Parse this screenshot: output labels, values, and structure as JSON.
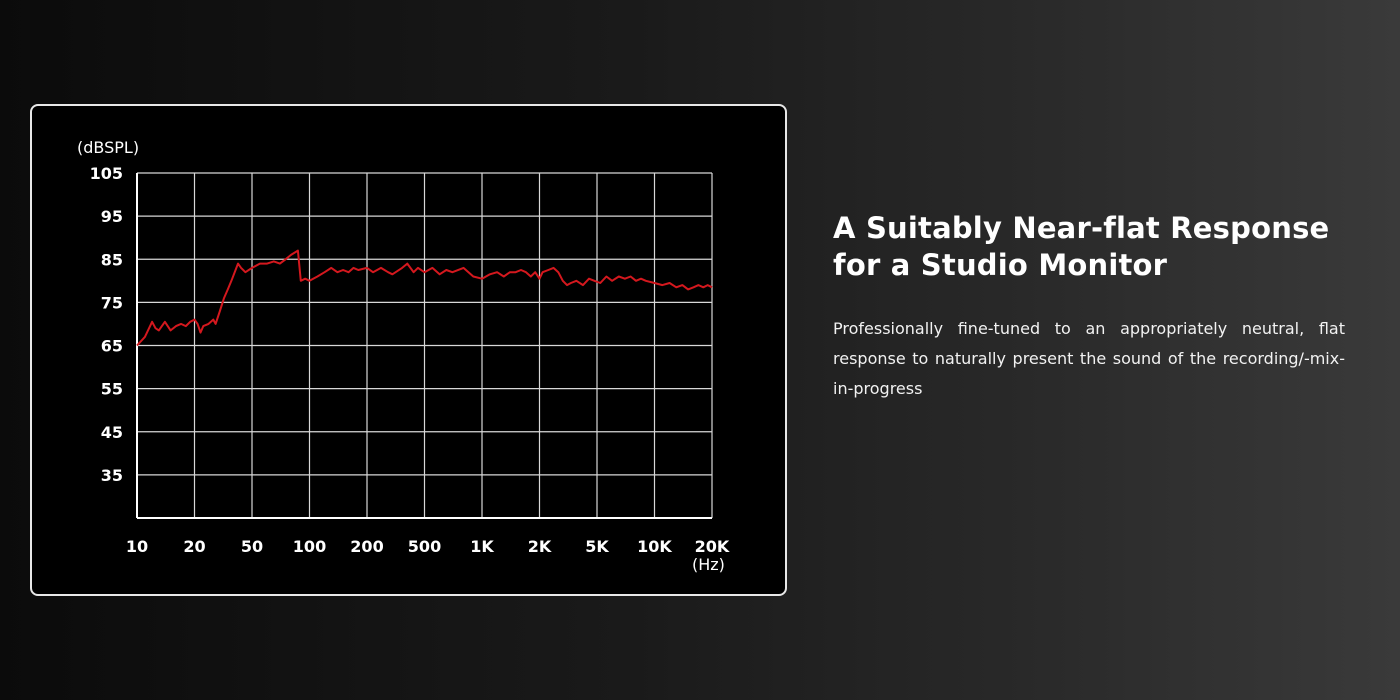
{
  "chart_data": {
    "type": "line",
    "y_unit": "(dBSPL)",
    "x_unit": "(Hz)",
    "x_scale": "log",
    "y_ticks": [
      105,
      95,
      85,
      75,
      65,
      55,
      45,
      35
    ],
    "ylim": [
      25,
      105
    ],
    "x_tick_labels": [
      "10",
      "20",
      "50",
      "100",
      "200",
      "500",
      "1K",
      "2K",
      "5K",
      "10K",
      "20K"
    ],
    "xlim": [
      10,
      20000
    ],
    "grid": true,
    "series": [
      {
        "color": "#d4181e",
        "points": [
          [
            10,
            65
          ],
          [
            11,
            67
          ],
          [
            12,
            70.5
          ],
          [
            12.5,
            69
          ],
          [
            13,
            68.5
          ],
          [
            14,
            70.5
          ],
          [
            15,
            68.5
          ],
          [
            16,
            69.5
          ],
          [
            17,
            70
          ],
          [
            18,
            69.5
          ],
          [
            19,
            70.5
          ],
          [
            20,
            71
          ],
          [
            21,
            70
          ],
          [
            22,
            68
          ],
          [
            23,
            69.5
          ],
          [
            25,
            70
          ],
          [
            27,
            71
          ],
          [
            28,
            70
          ],
          [
            30,
            73
          ],
          [
            32,
            76
          ],
          [
            34,
            78
          ],
          [
            36,
            80
          ],
          [
            40,
            84
          ],
          [
            42,
            83
          ],
          [
            45,
            82
          ],
          [
            50,
            83
          ],
          [
            55,
            84
          ],
          [
            60,
            84
          ],
          [
            65,
            84.5
          ],
          [
            70,
            84
          ],
          [
            75,
            85
          ],
          [
            80,
            86
          ],
          [
            87,
            87
          ],
          [
            90,
            80
          ],
          [
            95,
            80.5
          ],
          [
            100,
            80
          ],
          [
            110,
            81
          ],
          [
            120,
            82
          ],
          [
            130,
            83
          ],
          [
            140,
            82
          ],
          [
            150,
            82.5
          ],
          [
            160,
            82
          ],
          [
            170,
            83
          ],
          [
            180,
            82.5
          ],
          [
            200,
            83
          ],
          [
            220,
            82
          ],
          [
            250,
            83
          ],
          [
            280,
            82
          ],
          [
            300,
            81.5
          ],
          [
            350,
            83
          ],
          [
            380,
            84
          ],
          [
            420,
            82
          ],
          [
            450,
            83
          ],
          [
            500,
            82
          ],
          [
            550,
            83
          ],
          [
            600,
            81.5
          ],
          [
            650,
            82.5
          ],
          [
            700,
            82
          ],
          [
            800,
            83
          ],
          [
            900,
            81
          ],
          [
            1000,
            80.5
          ],
          [
            1100,
            81.5
          ],
          [
            1200,
            82
          ],
          [
            1300,
            81
          ],
          [
            1400,
            82
          ],
          [
            1500,
            82
          ],
          [
            1600,
            82.5
          ],
          [
            1700,
            82
          ],
          [
            1800,
            81
          ],
          [
            1900,
            82
          ],
          [
            2000,
            80.5
          ],
          [
            2100,
            82
          ],
          [
            2300,
            82.5
          ],
          [
            2500,
            83
          ],
          [
            2700,
            82
          ],
          [
            2900,
            80
          ],
          [
            3100,
            79
          ],
          [
            3300,
            79.5
          ],
          [
            3600,
            80
          ],
          [
            4000,
            79
          ],
          [
            4400,
            80.5
          ],
          [
            4800,
            80
          ],
          [
            5200,
            79.5
          ],
          [
            5600,
            81
          ],
          [
            6000,
            80
          ],
          [
            6500,
            81
          ],
          [
            7000,
            80.5
          ],
          [
            7500,
            81
          ],
          [
            8000,
            80
          ],
          [
            8500,
            80.5
          ],
          [
            9000,
            80
          ],
          [
            10000,
            79.5
          ],
          [
            11000,
            79
          ],
          [
            12000,
            79.5
          ],
          [
            13000,
            78.5
          ],
          [
            14000,
            79
          ],
          [
            15000,
            78
          ],
          [
            16000,
            78.5
          ],
          [
            17000,
            79
          ],
          [
            18000,
            78.5
          ],
          [
            19000,
            79
          ],
          [
            20000,
            78.5
          ]
        ]
      }
    ]
  },
  "text": {
    "headline_line1": "A Suitably Near-flat Response",
    "headline_line2": "for a Studio Monitor",
    "body": "Professionally fine-tuned to an appropriately neutral, flat response to naturally present the sound of the recording/-mix-in-progress"
  }
}
